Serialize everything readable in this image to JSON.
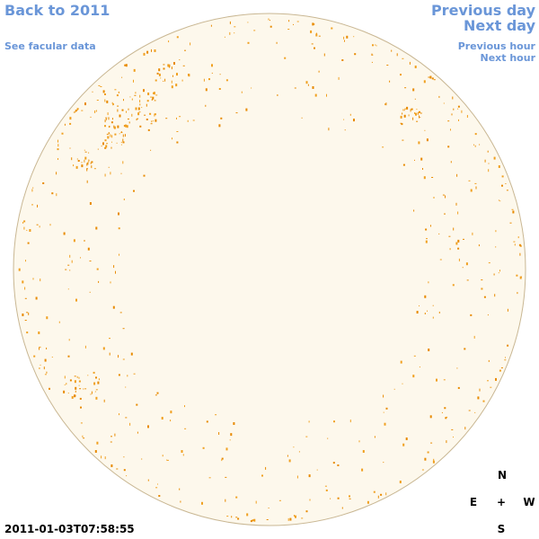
{
  "nav": {
    "back": "Back to 2011",
    "facular": "See facular data",
    "previous_day": "Previous day",
    "next_day": "Next day",
    "previous_hour": "Previous hour",
    "next_hour": "Next hour"
  },
  "timestamp": "2011-01-03T07:58:55",
  "compass": {
    "north": "N",
    "east": "E",
    "center": "+",
    "west": "W",
    "south": "S"
  }
}
